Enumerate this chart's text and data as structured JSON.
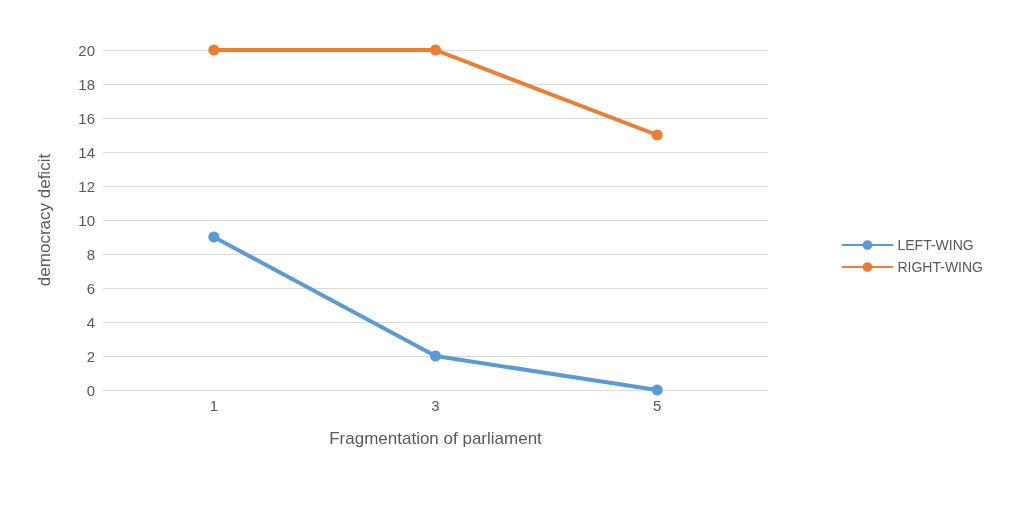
{
  "chart_data": {
    "type": "line",
    "xlabel": "Fragmentation of parliament",
    "ylabel": "democracy deficit",
    "categories": [
      "1",
      "3",
      "5"
    ],
    "series": [
      {
        "name": "LEFT-WING",
        "color": "#5b9bd5",
        "values": [
          9,
          2,
          0
        ]
      },
      {
        "name": "RIGHT-WING",
        "color": "#ed7d31",
        "values": [
          20,
          20,
          15
        ]
      }
    ],
    "ylim": [
      0,
      20
    ],
    "yticks": [
      0,
      2,
      4,
      6,
      8,
      10,
      12,
      14,
      16,
      18,
      20
    ],
    "grid": "y",
    "legend": "right",
    "marker": "circle",
    "line_style": "solid"
  }
}
